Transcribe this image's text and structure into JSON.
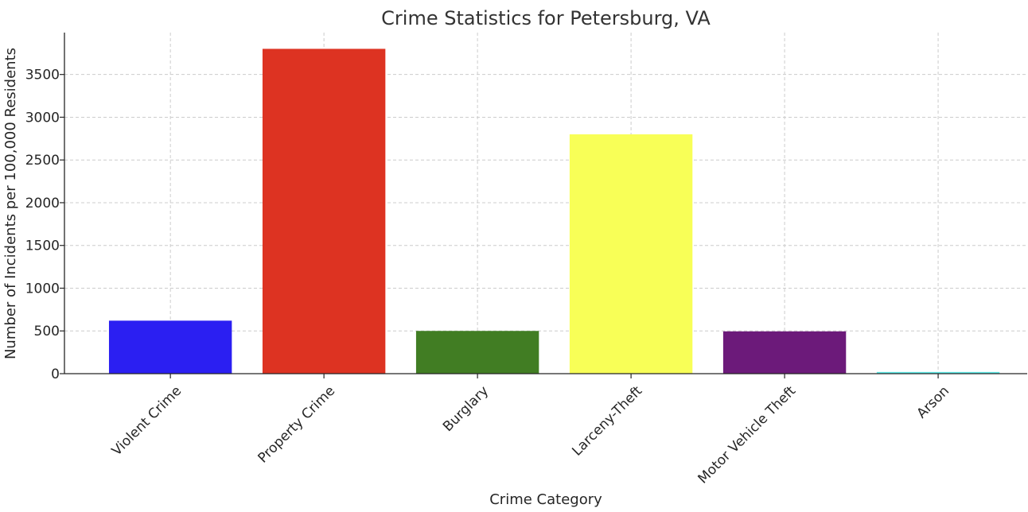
{
  "chart_data": {
    "type": "bar",
    "title": "Crime Statistics for Petersburg, VA",
    "xlabel": "Crime Category",
    "ylabel": "Number of Incidents per 100,000 Residents",
    "categories": [
      "Violent Crime",
      "Property Crime",
      "Burglary",
      "Larceny-Theft",
      "Motor Vehicle Theft",
      "Arson"
    ],
    "values": [
      620,
      3800,
      500,
      2800,
      495,
      20
    ],
    "colors": [
      "#2b1ff2",
      "#dd3322",
      "#417d23",
      "#f8ff57",
      "#6c1a7a",
      "#5ee8e4"
    ],
    "yticks": [
      0,
      500,
      1000,
      1500,
      2000,
      2500,
      3000,
      3500
    ],
    "ylim": [
      0,
      3990
    ],
    "grid": true,
    "grid_style": "dashed"
  }
}
